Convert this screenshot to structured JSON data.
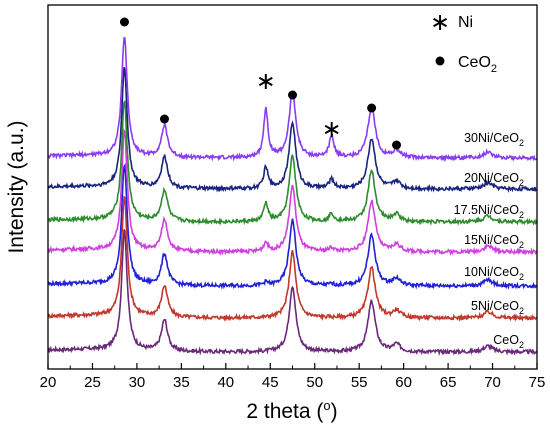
{
  "chart_data": {
    "type": "line",
    "xlabel": "2 theta (",
    "xlabel_unit_sup": "o",
    "xlabel_close": ")",
    "ylabel": "Intensity (a.u.)",
    "xlim": [
      20,
      75
    ],
    "xticks": [
      "20",
      "25",
      "30",
      "35",
      "40",
      "45",
      "50",
      "55",
      "60",
      "65",
      "70",
      "75"
    ],
    "legend": {
      "position": "top-right",
      "items": [
        {
          "marker": "asterisk",
          "text": "Ni"
        },
        {
          "marker": "circle",
          "text": "CeO",
          "sub": "2"
        }
      ]
    },
    "peaks": [
      {
        "x": 28.6,
        "phase": "CeO2"
      },
      {
        "x": 33.1,
        "phase": "CeO2"
      },
      {
        "x": 44.5,
        "phase": "Ni"
      },
      {
        "x": 47.5,
        "phase": "CeO2"
      },
      {
        "x": 51.9,
        "phase": "Ni"
      },
      {
        "x": 56.4,
        "phase": "CeO2"
      },
      {
        "x": 59.2,
        "phase": "CeO2"
      }
    ],
    "series": [
      {
        "name": "CeO",
        "sub": "2",
        "color": "#6a2a7a",
        "ni": 0.0
      },
      {
        "name": "5Ni/CeO",
        "sub": "2",
        "color": "#c0392b",
        "ni": 0.0
      },
      {
        "name": "10Ni/CeO",
        "sub": "2",
        "color": "#2020d8",
        "ni": 0.1
      },
      {
        "name": "15Ni/CeO",
        "sub": "2",
        "color": "#d040e0",
        "ni": 0.3
      },
      {
        "name": "17.5Ni/CeO",
        "sub": "2",
        "color": "#2e8b2e",
        "ni": 0.6
      },
      {
        "name": "20Ni/CeO",
        "sub": "2",
        "color": "#1a237e",
        "ni": 0.7
      },
      {
        "name": "30Ni/CeO",
        "sub": "2",
        "color": "#8a3cf0",
        "ni": 1.6
      }
    ]
  }
}
